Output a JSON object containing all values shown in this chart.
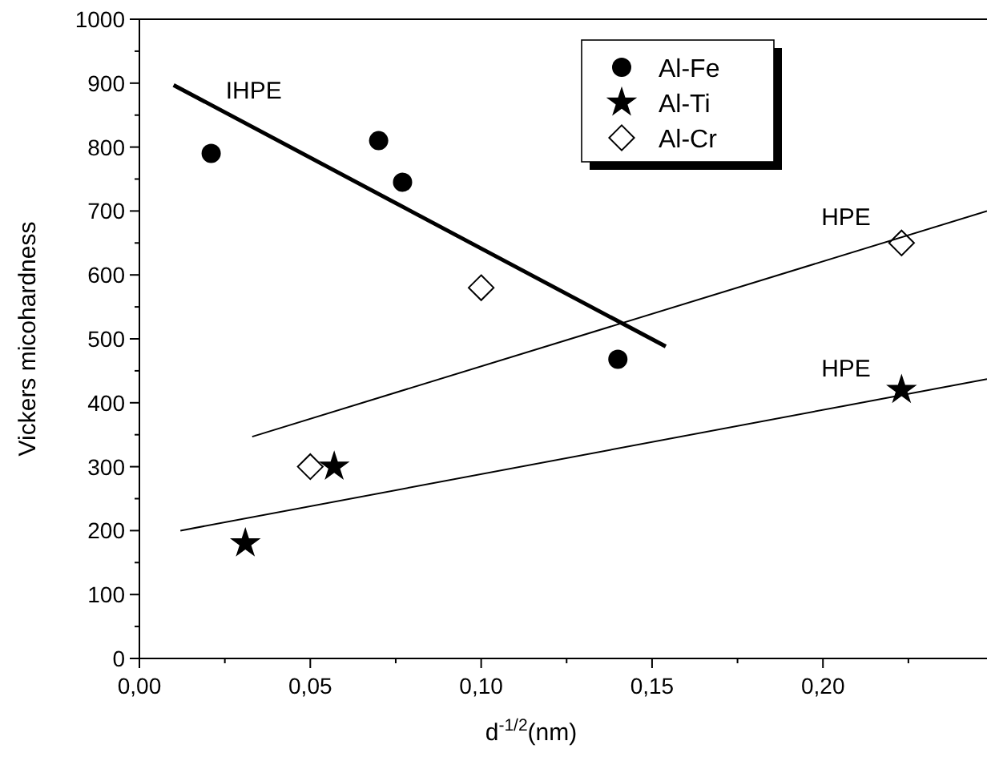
{
  "chart_data": {
    "type": "scatter",
    "xlabel": "d$^{-1/2}$(nm)",
    "ylabel": "Vickers micohardness",
    "xlim": [
      0,
      0.248
    ],
    "ylim": [
      0,
      1000
    ],
    "xticks": [
      {
        "value": 0,
        "label": "0,00"
      },
      {
        "value": 0.025,
        "label": null
      },
      {
        "value": 0.05,
        "label": "0,05"
      },
      {
        "value": 0.075,
        "label": null
      },
      {
        "value": 0.1,
        "label": "0,10"
      },
      {
        "value": 0.125,
        "label": null
      },
      {
        "value": 0.15,
        "label": "0,15"
      },
      {
        "value": 0.175,
        "label": null
      },
      {
        "value": 0.2,
        "label": "0,20"
      },
      {
        "value": 0.225,
        "label": null
      }
    ],
    "yticks": [
      0,
      {
        "value": 50,
        "label": null
      },
      100,
      {
        "value": 150,
        "label": null
      },
      200,
      {
        "value": 250,
        "label": null
      },
      300,
      {
        "value": 350,
        "label": null
      },
      400,
      {
        "value": 450,
        "label": null
      },
      500,
      {
        "value": 550,
        "label": null
      },
      600,
      {
        "value": 650,
        "label": null
      },
      700,
      {
        "value": 750,
        "label": null
      },
      800,
      {
        "value": 850,
        "label": null
      },
      900,
      {
        "value": 950,
        "label": null
      },
      1000
    ],
    "grid": false,
    "legend": "top right",
    "series": [
      {
        "name": "Al-Fe",
        "marker": "circle",
        "color": "#000000",
        "x": [
          0.021,
          0.07,
          0.077,
          0.14
        ],
        "values": [
          790,
          810,
          745,
          468
        ]
      },
      {
        "name": "Al-Ti",
        "marker": "star",
        "color": "#000000",
        "x": [
          0.031,
          0.057,
          0.223
        ],
        "values": [
          180,
          300,
          420
        ]
      },
      {
        "name": "Al-Cr",
        "marker": "diamond",
        "color": "#000000",
        "x": [
          0.05,
          0.1,
          0.223
        ],
        "values": [
          300,
          580,
          650
        ]
      },
      {
        "type": "line",
        "color": "#000000",
        "x": [
          0.01,
          0.154
        ],
        "values": [
          897,
          488
        ]
      },
      {
        "type": "line",
        "color": "#000000",
        "x": [
          0.033,
          0.248
        ],
        "values": [
          347,
          700
        ]
      },
      {
        "type": "line",
        "color": "#000000",
        "x": [
          0.012,
          0.248
        ],
        "values": [
          200,
          437
        ]
      }
    ],
    "annotations": [
      "IHPE",
      "HPE",
      "HPE"
    ]
  }
}
